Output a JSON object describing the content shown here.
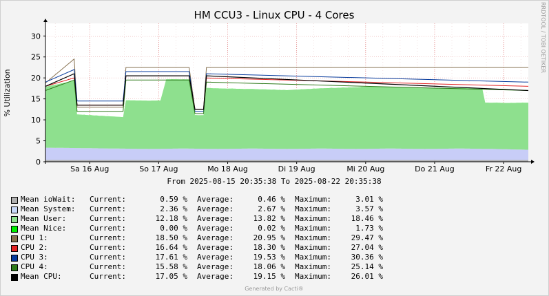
{
  "chart_data": {
    "type": "area",
    "title": "HM CCU3 - Linux CPU - 4 Cores",
    "ylabel": "% Utilization",
    "side_label": "RRDTOOL / TOBI OETIKER",
    "range_text": "From 2025-08-15 20:35:38 To 2025-08-22 20:35:38",
    "footer": "Generated by Cacti®",
    "ylim": [
      0,
      33
    ],
    "yticks": [
      0,
      5,
      10,
      15,
      20,
      25,
      30
    ],
    "xlim_hours": [
      0,
      168
    ],
    "x_ticks": [
      {
        "label": "Sa 16 Aug",
        "hour": 15.4
      },
      {
        "label": "So 17 Aug",
        "hour": 39.4
      },
      {
        "label": "Mo 18 Aug",
        "hour": 63.4
      },
      {
        "label": "Di 19 Aug",
        "hour": 87.4
      },
      {
        "label": "Mi 20 Aug",
        "hour": 111.4
      },
      {
        "label": "Do 21 Aug",
        "hour": 135.4
      },
      {
        "label": "Fr 22 Aug",
        "hour": 159.4
      }
    ],
    "series": [
      {
        "name": "Mean ioWait",
        "kind": "stack",
        "color": "#b0b0b0",
        "x": [
          0,
          168
        ],
        "y": [
          0.46,
          0.46
        ]
      },
      {
        "name": "Mean System",
        "kind": "stack",
        "color": "#c8cdf7",
        "x": [
          0,
          12,
          24,
          36,
          48,
          60,
          72,
          84,
          96,
          108,
          120,
          132,
          144,
          156,
          168
        ],
        "y": [
          2.9,
          2.8,
          2.7,
          2.6,
          2.7,
          2.6,
          2.7,
          2.6,
          2.7,
          2.6,
          2.7,
          2.6,
          2.7,
          2.6,
          2.4
        ]
      },
      {
        "name": "Mean User",
        "kind": "stack",
        "color": "#8ee08e",
        "x": [
          0,
          10,
          11,
          27,
          28,
          40,
          42,
          50,
          52,
          55,
          56,
          70,
          84,
          98,
          112,
          126,
          140,
          152,
          153,
          160,
          168
        ],
        "y": [
          14.5,
          16.0,
          8.0,
          7.5,
          11.5,
          11.5,
          16.5,
          16.5,
          8.0,
          8.0,
          14.5,
          14.2,
          14.0,
          14.4,
          14.8,
          14.6,
          14.5,
          14.3,
          11.0,
          11.0,
          11.2
        ]
      },
      {
        "name": "Mean Nice",
        "kind": "stack",
        "color": "#00ee00",
        "x": [
          0,
          168
        ],
        "y": [
          0.02,
          0.02
        ]
      },
      {
        "name": "CPU 1",
        "kind": "line",
        "color": "#867150",
        "x": [
          0,
          10,
          11,
          27,
          28,
          40,
          42,
          50,
          52,
          55,
          56,
          168
        ],
        "y": [
          18.8,
          24.5,
          13.0,
          13.0,
          22.5,
          22.5,
          22.5,
          22.5,
          12.5,
          12.5,
          22.5,
          22.5
        ]
      },
      {
        "name": "CPU 2",
        "kind": "line",
        "color": "#e22323",
        "x": [
          0,
          10,
          11,
          27,
          28,
          40,
          42,
          50,
          52,
          55,
          56,
          168
        ],
        "y": [
          18.0,
          20.0,
          13.5,
          13.5,
          20.5,
          20.5,
          20.5,
          20.5,
          12.5,
          12.5,
          20.0,
          18.0
        ]
      },
      {
        "name": "CPU 3",
        "kind": "line",
        "color": "#053a9c",
        "x": [
          0,
          10,
          11,
          27,
          28,
          40,
          42,
          50,
          52,
          55,
          56,
          168
        ],
        "y": [
          19.0,
          22.0,
          14.5,
          14.5,
          21.5,
          21.5,
          21.5,
          21.5,
          12.0,
          12.0,
          21.0,
          19.0
        ]
      },
      {
        "name": "CPU 4",
        "kind": "line",
        "color": "#2d7a1a",
        "x": [
          0,
          10,
          11,
          27,
          28,
          40,
          42,
          50,
          52,
          55,
          56,
          168
        ],
        "y": [
          17.0,
          19.5,
          12.0,
          12.0,
          19.5,
          19.5,
          19.5,
          19.5,
          11.5,
          11.5,
          19.0,
          17.0
        ]
      },
      {
        "name": "Mean CPU",
        "kind": "line",
        "color": "#000000",
        "x": [
          0,
          10,
          11,
          27,
          28,
          40,
          42,
          50,
          52,
          55,
          56,
          168
        ],
        "y": [
          18.0,
          21.0,
          13.5,
          13.5,
          20.5,
          20.5,
          20.5,
          20.5,
          12.5,
          12.5,
          20.5,
          17.0
        ]
      }
    ],
    "legend": {
      "columns": [
        "Current:",
        "Average:",
        "Maximum:"
      ],
      "rows": [
        {
          "label": "Mean ioWait",
          "color": "#b0b0b0",
          "current": "0.59 %",
          "average": "0.46 %",
          "maximum": "3.01 %"
        },
        {
          "label": "Mean System",
          "color": "#c8d8f8",
          "current": "2.36 %",
          "average": "2.67 %",
          "maximum": "3.57 %"
        },
        {
          "label": "Mean User",
          "color": "#8ee08e",
          "current": "12.18 %",
          "average": "13.82 %",
          "maximum": "18.46 %"
        },
        {
          "label": "Mean Nice",
          "color": "#00ee00",
          "current": "0.00 %",
          "average": "0.02 %",
          "maximum": "1.73 %"
        },
        {
          "label": "CPU 1",
          "color": "#867150",
          "current": "18.50 %",
          "average": "20.95 %",
          "maximum": "29.47 %"
        },
        {
          "label": "CPU 2",
          "color": "#e22323",
          "current": "16.64 %",
          "average": "18.30 %",
          "maximum": "27.04 %"
        },
        {
          "label": "CPU 3",
          "color": "#053a9c",
          "current": "17.61 %",
          "average": "19.53 %",
          "maximum": "30.36 %"
        },
        {
          "label": "CPU 4",
          "color": "#2d7a1a",
          "current": "15.58 %",
          "average": "18.06 %",
          "maximum": "25.14 %"
        },
        {
          "label": "Mean CPU",
          "color": "#000000",
          "current": "17.05 %",
          "average": "19.15 %",
          "maximum": "26.01 %"
        }
      ]
    }
  }
}
